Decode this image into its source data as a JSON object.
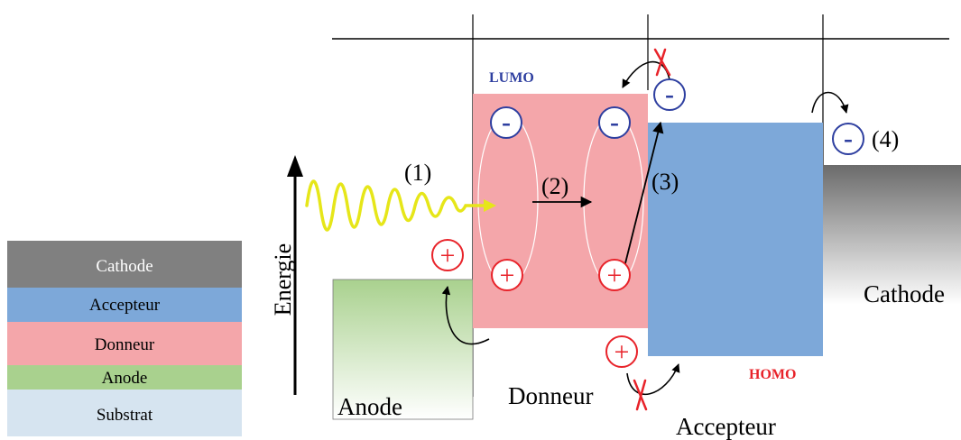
{
  "legend": {
    "layers": [
      {
        "label": "Cathode",
        "color": "#808080",
        "text_color": "#ffffff"
      },
      {
        "label": "Accepteur",
        "color": "#7da8d9",
        "text_color": "#000000"
      },
      {
        "label": "Donneur",
        "color": "#f4a6aa",
        "text_color": "#000000"
      },
      {
        "label": "Anode",
        "color": "#a9d18e",
        "text_color": "#000000"
      },
      {
        "label": "Substrat",
        "color": "#d6e4f0",
        "text_color": "#000000"
      }
    ]
  },
  "axis": {
    "label": "Energie"
  },
  "levels": {
    "lumo": "LUMO",
    "homo": "HOMO"
  },
  "materials": {
    "anode": "Anode",
    "donneur": "Donneur",
    "accepteur": "Accepteur",
    "cathode": "Cathode"
  },
  "steps": {
    "s1": "(1)",
    "s2": "(2)",
    "s3": "(3)",
    "s4": "(4)"
  },
  "charges": {
    "electron": "-",
    "hole": "+"
  },
  "colors": {
    "donneur_fill": "#f4a6aa",
    "accepteur_fill": "#7da8d9",
    "anode_fill_top": "#a9d18e",
    "cathode_fill_top": "#6e6e6e",
    "electron": "#2e3fa0",
    "hole": "#e8232a",
    "photon": "#e6e619",
    "lumo_label": "#2e3fa0",
    "homo_label": "#e8232a"
  }
}
